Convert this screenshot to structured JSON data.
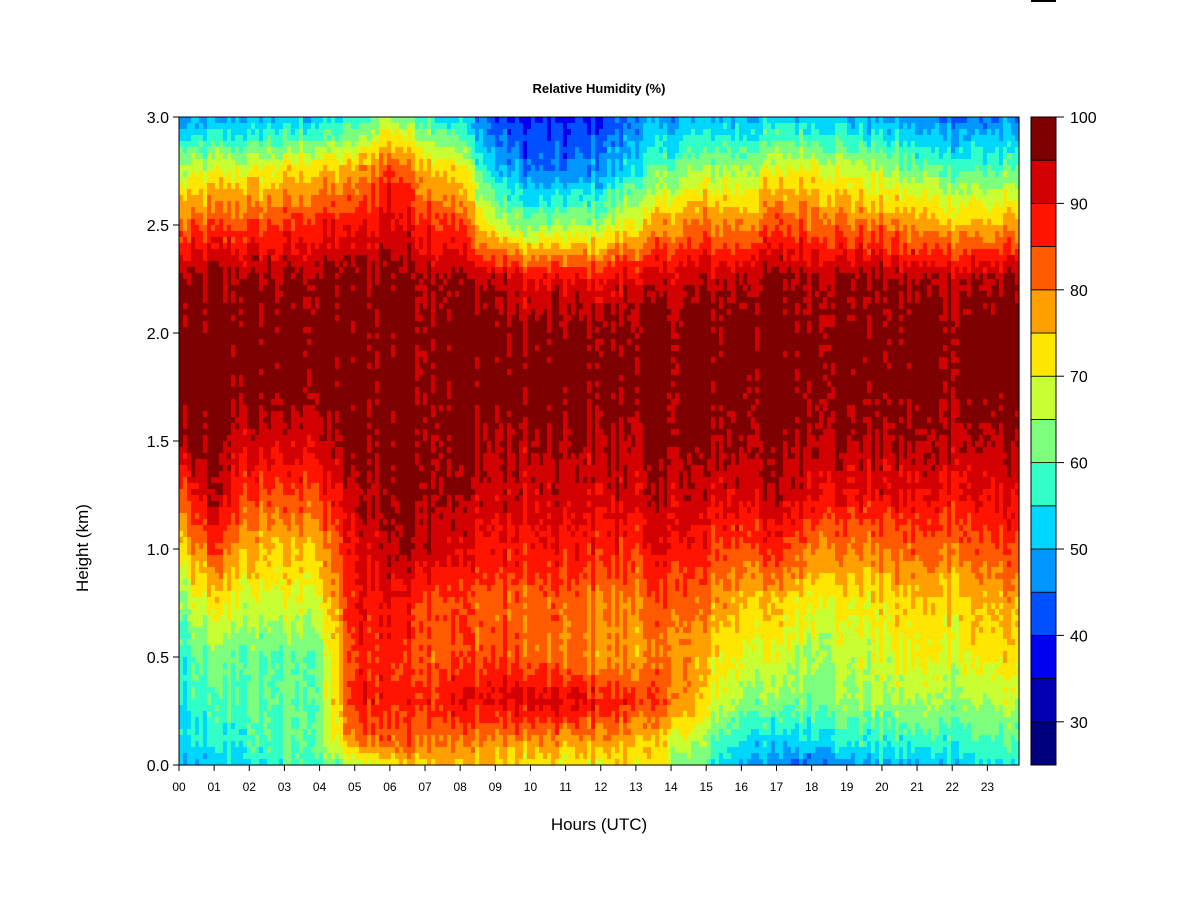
{
  "chart_data": {
    "type": "heatmap",
    "title": "Relative Humidity (%)",
    "xlabel": "Hours (UTC)",
    "ylabel": "Height (km)",
    "xlim": [
      0,
      23.9
    ],
    "ylim": [
      0.0,
      3.0
    ],
    "x_ticks": [
      "00",
      "01",
      "02",
      "03",
      "04",
      "05",
      "06",
      "07",
      "08",
      "09",
      "10",
      "11",
      "12",
      "13",
      "14",
      "15",
      "16",
      "17",
      "18",
      "19",
      "20",
      "21",
      "22",
      "23"
    ],
    "y_ticks": [
      "0.0",
      "0.5",
      "1.0",
      "1.5",
      "2.0",
      "2.5",
      "3.0"
    ],
    "colorbar": {
      "min": 25,
      "max": 100,
      "step": 5,
      "ticks": [
        "30",
        "40",
        "50",
        "60",
        "70",
        "80",
        "90",
        "100"
      ],
      "colors": [
        "#00007f",
        "#0000b2",
        "#0000f0",
        "#0050ff",
        "#0096ff",
        "#00d7ff",
        "#32ffc8",
        "#7dff7d",
        "#c8ff32",
        "#ffe600",
        "#ffa000",
        "#ff5a00",
        "#ff1400",
        "#d20000",
        "#7f0000"
      ]
    },
    "grid": false,
    "layers_km": [
      {
        "height": 0.0,
        "rh": [
          50,
          50,
          54,
          57,
          58,
          64,
          73,
          77,
          76,
          73,
          72,
          70,
          72,
          72,
          66,
          57,
          50,
          45,
          47,
          48,
          50,
          50,
          52,
          55
        ]
      },
      {
        "height": 0.1,
        "rh": [
          52,
          55,
          58,
          60,
          62,
          80,
          82,
          82,
          80,
          78,
          77,
          77,
          78,
          76,
          70,
          62,
          55,
          50,
          54,
          56,
          56,
          57,
          57,
          59
        ]
      },
      {
        "height": 0.3,
        "rh": [
          55,
          58,
          60,
          60,
          62,
          88,
          88,
          88,
          90,
          91,
          92,
          91,
          89,
          86,
          82,
          72,
          65,
          62,
          64,
          65,
          65,
          65,
          65,
          66
        ]
      },
      {
        "height": 0.5,
        "rh": [
          55,
          62,
          60,
          60,
          62,
          86,
          87,
          84,
          84,
          84,
          82,
          80,
          78,
          78,
          80,
          75,
          70,
          68,
          66,
          66,
          68,
          70,
          70,
          72
        ]
      },
      {
        "height": 0.75,
        "rh": [
          62,
          72,
          68,
          68,
          70,
          88,
          90,
          86,
          84,
          82,
          82,
          82,
          80,
          80,
          84,
          80,
          76,
          74,
          72,
          72,
          72,
          74,
          74,
          76
        ]
      },
      {
        "height": 1.0,
        "rh": [
          72,
          85,
          75,
          75,
          76,
          90,
          95,
          96,
          90,
          88,
          88,
          88,
          87,
          87,
          90,
          86,
          84,
          86,
          82,
          80,
          80,
          82,
          82,
          84
        ]
      },
      {
        "height": 1.25,
        "rh": [
          82,
          95,
          84,
          84,
          85,
          94,
          97,
          98,
          95,
          93,
          92,
          92,
          92,
          92,
          94,
          92,
          92,
          94,
          92,
          90,
          90,
          90,
          90,
          90
        ]
      },
      {
        "height": 1.5,
        "rh": [
          96,
          97,
          92,
          92,
          93,
          98,
          98,
          98,
          97,
          95,
          95,
          95,
          95,
          95,
          97,
          96,
          96,
          96,
          96,
          95,
          95,
          95,
          95,
          95
        ]
      },
      {
        "height": 1.75,
        "rh": [
          98,
          98,
          98,
          98,
          98,
          98,
          98,
          98,
          98,
          98,
          98,
          98,
          98,
          98,
          98,
          98,
          98,
          98,
          98,
          98,
          98,
          98,
          98,
          98
        ]
      },
      {
        "height": 2.0,
        "rh": [
          98,
          98,
          98,
          98,
          98,
          98,
          98,
          98,
          98,
          98,
          97,
          97,
          97,
          97,
          97,
          97,
          98,
          98,
          98,
          98,
          98,
          98,
          98,
          98
        ]
      },
      {
        "height": 2.25,
        "rh": [
          96,
          96,
          96,
          96,
          97,
          97,
          98,
          97,
          96,
          94,
          90,
          90,
          90,
          92,
          93,
          94,
          95,
          96,
          96,
          96,
          95,
          95,
          95,
          95
        ]
      },
      {
        "height": 2.5,
        "rh": [
          80,
          84,
          84,
          86,
          88,
          88,
          92,
          88,
          84,
          68,
          62,
          64,
          66,
          72,
          78,
          80,
          80,
          84,
          84,
          82,
          80,
          78,
          76,
          76
        ]
      },
      {
        "height": 2.75,
        "rh": [
          66,
          70,
          70,
          72,
          74,
          76,
          86,
          78,
          72,
          52,
          45,
          45,
          48,
          56,
          62,
          66,
          66,
          70,
          72,
          68,
          66,
          62,
          60,
          60
        ]
      },
      {
        "height": 3.0,
        "rh": [
          45,
          48,
          48,
          50,
          52,
          56,
          66,
          58,
          52,
          40,
          38,
          38,
          40,
          45,
          48,
          50,
          50,
          52,
          52,
          50,
          48,
          46,
          45,
          45
        ]
      }
    ]
  }
}
